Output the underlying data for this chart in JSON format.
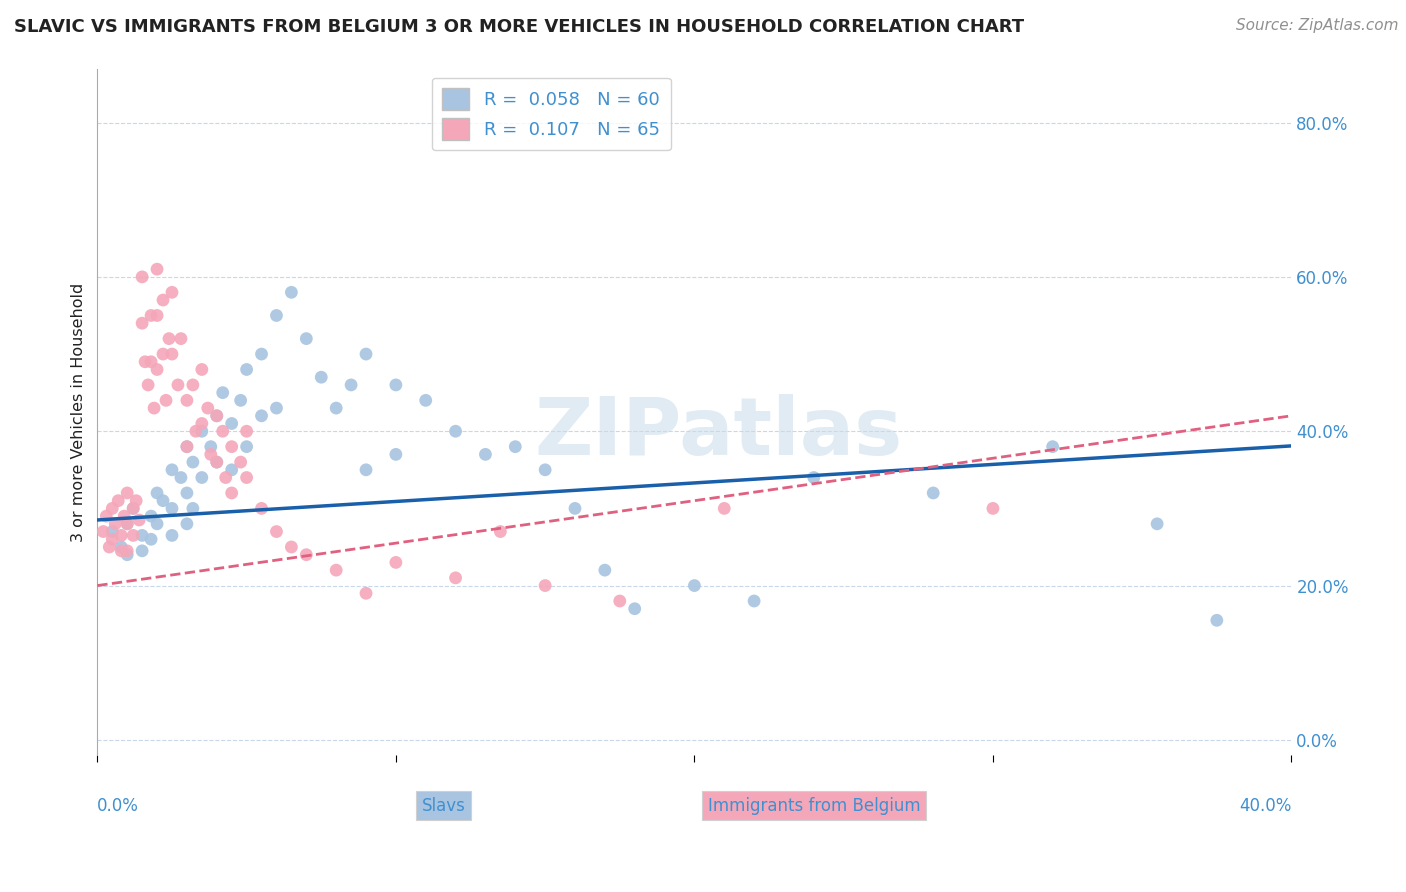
{
  "title": "SLAVIC VS IMMIGRANTS FROM BELGIUM 3 OR MORE VEHICLES IN HOUSEHOLD CORRELATION CHART",
  "source": "Source: ZipAtlas.com",
  "ylabel": "3 or more Vehicles in Household",
  "watermark": "ZIPatlas",
  "xlim": [
    0.0,
    0.4
  ],
  "ylim": [
    -0.02,
    0.87
  ],
  "yticks": [
    0.0,
    0.2,
    0.4,
    0.6,
    0.8
  ],
  "xticks": [
    0.0,
    0.1,
    0.2,
    0.3,
    0.4
  ],
  "slavs_R": "0.058",
  "slavs_N": 60,
  "belgium_R": "0.107",
  "belgium_N": 65,
  "slavs_color": "#a8c4e0",
  "belgium_color": "#f4a7b9",
  "slavs_line_color": "#1a5faa",
  "belgium_line_color": "#e06080",
  "background_color": "#ffffff",
  "grid_color": "#c8d8ea",
  "title_color": "#222222",
  "axis_tick_color": "#4090d0",
  "legend_text_color": "#4090d0",
  "slavs_x": [
    0.005,
    0.008,
    0.01,
    0.01,
    0.012,
    0.015,
    0.015,
    0.018,
    0.018,
    0.02,
    0.02,
    0.022,
    0.025,
    0.025,
    0.025,
    0.028,
    0.03,
    0.03,
    0.03,
    0.032,
    0.032,
    0.035,
    0.035,
    0.038,
    0.04,
    0.04,
    0.042,
    0.045,
    0.045,
    0.048,
    0.05,
    0.05,
    0.055,
    0.055,
    0.06,
    0.06,
    0.065,
    0.07,
    0.075,
    0.08,
    0.085,
    0.09,
    0.09,
    0.1,
    0.1,
    0.11,
    0.12,
    0.13,
    0.14,
    0.15,
    0.16,
    0.17,
    0.18,
    0.2,
    0.22,
    0.24,
    0.28,
    0.32,
    0.355,
    0.375
  ],
  "slavs_y": [
    0.27,
    0.25,
    0.28,
    0.24,
    0.3,
    0.265,
    0.245,
    0.29,
    0.26,
    0.32,
    0.28,
    0.31,
    0.35,
    0.3,
    0.265,
    0.34,
    0.38,
    0.32,
    0.28,
    0.36,
    0.3,
    0.4,
    0.34,
    0.38,
    0.42,
    0.36,
    0.45,
    0.41,
    0.35,
    0.44,
    0.48,
    0.38,
    0.5,
    0.42,
    0.55,
    0.43,
    0.58,
    0.52,
    0.47,
    0.43,
    0.46,
    0.5,
    0.35,
    0.46,
    0.37,
    0.44,
    0.4,
    0.37,
    0.38,
    0.35,
    0.3,
    0.22,
    0.17,
    0.2,
    0.18,
    0.34,
    0.32,
    0.38,
    0.28,
    0.155
  ],
  "belgium_x": [
    0.002,
    0.003,
    0.004,
    0.005,
    0.005,
    0.006,
    0.007,
    0.008,
    0.008,
    0.009,
    0.01,
    0.01,
    0.01,
    0.012,
    0.012,
    0.013,
    0.014,
    0.015,
    0.015,
    0.016,
    0.017,
    0.018,
    0.018,
    0.019,
    0.02,
    0.02,
    0.02,
    0.022,
    0.022,
    0.023,
    0.024,
    0.025,
    0.025,
    0.027,
    0.028,
    0.03,
    0.03,
    0.032,
    0.033,
    0.035,
    0.035,
    0.037,
    0.038,
    0.04,
    0.04,
    0.042,
    0.043,
    0.045,
    0.045,
    0.048,
    0.05,
    0.05,
    0.055,
    0.06,
    0.065,
    0.07,
    0.08,
    0.09,
    0.1,
    0.12,
    0.135,
    0.15,
    0.175,
    0.21,
    0.3
  ],
  "belgium_y": [
    0.27,
    0.29,
    0.25,
    0.3,
    0.26,
    0.28,
    0.31,
    0.265,
    0.245,
    0.29,
    0.32,
    0.28,
    0.245,
    0.3,
    0.265,
    0.31,
    0.285,
    0.6,
    0.54,
    0.49,
    0.46,
    0.55,
    0.49,
    0.43,
    0.61,
    0.55,
    0.48,
    0.57,
    0.5,
    0.44,
    0.52,
    0.58,
    0.5,
    0.46,
    0.52,
    0.44,
    0.38,
    0.46,
    0.4,
    0.48,
    0.41,
    0.43,
    0.37,
    0.42,
    0.36,
    0.4,
    0.34,
    0.38,
    0.32,
    0.36,
    0.4,
    0.34,
    0.3,
    0.27,
    0.25,
    0.24,
    0.22,
    0.19,
    0.23,
    0.21,
    0.27,
    0.2,
    0.18,
    0.3,
    0.3
  ],
  "slavs_intercept": 0.285,
  "slavs_slope": 0.24,
  "belgium_intercept": 0.2,
  "belgium_slope": 0.55
}
